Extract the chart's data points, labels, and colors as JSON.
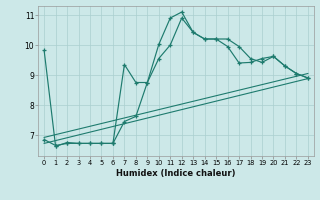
{
  "xlabel": "Humidex (Indice chaleur)",
  "xlim": [
    -0.5,
    23.5
  ],
  "ylim": [
    6.3,
    11.3
  ],
  "xticks": [
    0,
    1,
    2,
    3,
    4,
    5,
    6,
    7,
    8,
    9,
    10,
    11,
    12,
    13,
    14,
    15,
    16,
    17,
    18,
    19,
    20,
    21,
    22,
    23
  ],
  "yticks": [
    7,
    8,
    9,
    10,
    11
  ],
  "bg_color": "#cce8e8",
  "line_color": "#1e7b6e",
  "grid_color": "#aacfcf",
  "line1_x": [
    0,
    1,
    2,
    3,
    4,
    5,
    6,
    7,
    8,
    9,
    10,
    11,
    12,
    13,
    14,
    15,
    16,
    17,
    18,
    19,
    20,
    21,
    22,
    23
  ],
  "line1_y": [
    9.82,
    6.62,
    6.75,
    6.72,
    6.72,
    6.72,
    6.72,
    9.35,
    8.75,
    8.75,
    10.02,
    10.9,
    11.1,
    10.42,
    10.2,
    10.2,
    10.2,
    9.95,
    9.55,
    9.42,
    9.62,
    9.3,
    9.05,
    8.9
  ],
  "line2_x": [
    0,
    1,
    2,
    3,
    4,
    5,
    6,
    6,
    7,
    8,
    9,
    10,
    11,
    12,
    13,
    14,
    15,
    16,
    17,
    18,
    19,
    20,
    21,
    22,
    23
  ],
  "line2_y": [
    6.85,
    6.65,
    6.72,
    6.72,
    6.72,
    6.72,
    6.72,
    6.72,
    7.45,
    7.62,
    8.75,
    9.55,
    10.0,
    10.9,
    10.42,
    10.2,
    10.2,
    9.95,
    9.4,
    9.42,
    9.55,
    9.62,
    9.3,
    9.05,
    8.9
  ],
  "line3_x": [
    0,
    23
  ],
  "line3_y": [
    6.72,
    8.88
  ],
  "line4_x": [
    0,
    23
  ],
  "line4_y": [
    6.92,
    9.05
  ]
}
